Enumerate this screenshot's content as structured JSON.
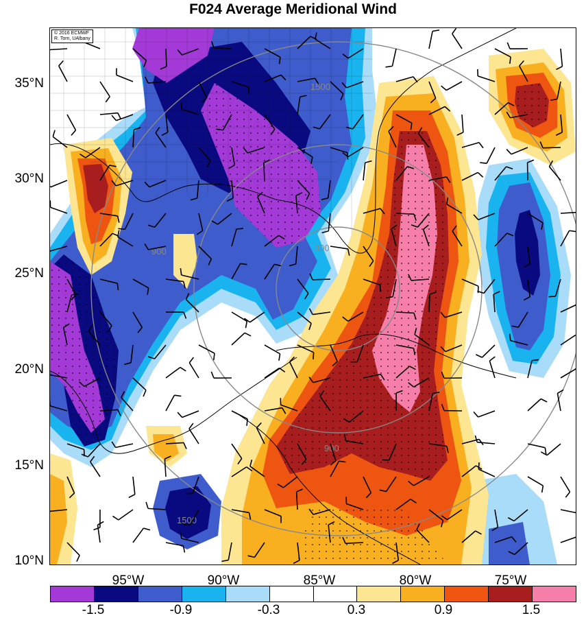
{
  "title": "F024 Average Meridional Wind",
  "credit": {
    "line1": "© 2016 ECMWF",
    "line2": "R. Torn, UAlbany"
  },
  "latitude_labels": [
    "35°N",
    "30°N",
    "25°N",
    "20°N",
    "15°N",
    "10°N"
  ],
  "longitude_labels": [
    "95°W",
    "90°W",
    "85°W",
    "80°W",
    "75°W"
  ],
  "colorbar": {
    "colors": [
      "#a33ad8",
      "#0a0a80",
      "#3e5ccc",
      "#19b4f0",
      "#a8dcf8",
      "#ffffff",
      "#ffffff",
      "#fde691",
      "#f8b021",
      "#ee5511",
      "#a81e1e",
      "#f57fa8"
    ],
    "labels": [
      "-1.5",
      "-0.9",
      "-0.3",
      "0.3",
      "0.9",
      "1.5"
    ]
  },
  "contour_labels": [
    "1500",
    "900",
    "300",
    "900",
    "1500"
  ]
}
